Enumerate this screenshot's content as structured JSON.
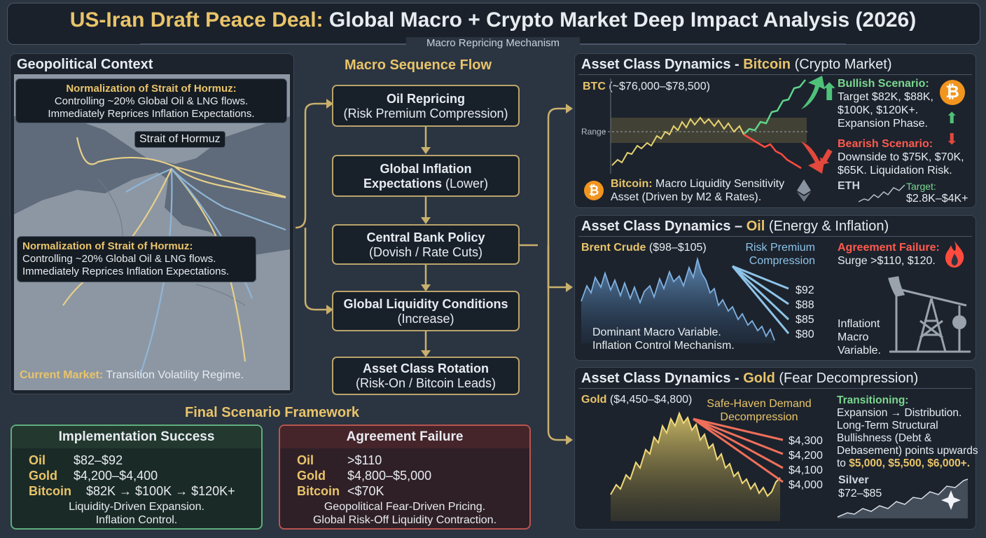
{
  "header": {
    "title_part1": "US-Iran Draft Peace Deal:",
    "title_part2": "Global Macro + Crypto Market Deep Impact Analysis (2026)",
    "subtitle": "Macro Repricing Mechanism"
  },
  "geo": {
    "title": "Geopolitical Context",
    "callout1_head": "Normalization of Strait of Hormuz:",
    "callout1_line1": "Controlling ~20% Global Oil & LNG flows.",
    "callout1_line2": "Immediately Reprices Inflation Expectations.",
    "map_label": "Strait of Hormuz",
    "callout2_head": "Normalization of Strait of Hormuz:",
    "callout2_line1": "Controlling ~20% Global Oil & LNG flows.",
    "callout2_line2": "Immediately Reprices Inflation Expectations.",
    "footer_head": "Current Market:",
    "footer_text": " Transition Volatility Regime."
  },
  "flow": {
    "title": "Macro Sequence Flow",
    "steps": [
      {
        "head": "Oil Repricing",
        "sub": "(Risk Premium Compression)"
      },
      {
        "head": "Global Inflation",
        "head2": "Expectations",
        "sub": " (Lower)"
      },
      {
        "head": "Central Bank Policy",
        "sub": "(Dovish / Rate Cuts)"
      },
      {
        "head": "Global Liquidity Conditions",
        "sub": "(Increase)"
      },
      {
        "head": "Asset Class Rotation",
        "sub": "(Risk-On / Bitcoin Leads)"
      }
    ]
  },
  "scenario": {
    "title": "Final Scenario Framework",
    "success": {
      "title": "Implementation Success",
      "rows": [
        {
          "label": "Oil",
          "value": "$82–$92"
        },
        {
          "label": "Gold",
          "value": "$4,200–$4,400"
        },
        {
          "label": "Bitcoin",
          "value": "$82K → $100K → $120K+"
        }
      ],
      "note1": "Liquidity-Driven Expansion.",
      "note2": "Inflation Control."
    },
    "failure": {
      "title": "Agreement Failure",
      "rows": [
        {
          "label": "Oil",
          "value": ">$110"
        },
        {
          "label": "Gold",
          "value": "$4,800–$5,000"
        },
        {
          "label": "Bitcoin",
          "value": "<$70K"
        }
      ],
      "note1": "Geopolitical Fear-Driven Pricing.",
      "note2": "Global Risk-Off Liquidity Contraction."
    }
  },
  "btc": {
    "title_a": "Asset Class Dynamics - ",
    "title_b": "Bitcoin",
    "title_c": " (Crypto Market)",
    "ticker": "BTC",
    "range_text": "(~$76,000–$78,500)",
    "range_label": "Range",
    "bull_head": "Bullish Scenario:",
    "bull_text1": "Target $82K, $88K,",
    "bull_text2": "$100K, $120K+.",
    "bull_text3": "Expansion Phase.",
    "bear_head": "Bearish Scenario:",
    "bear_text1": "Downside to $75K, $70K,",
    "bear_text2": "$65K. Liquidation Risk.",
    "note_head": "Bitcoin:",
    "note_text1": " Macro Liquidity Sensitivity",
    "note_text2": "Asset (Driven by M2 & Rates).",
    "eth_label": "ETH",
    "eth_target_head": "Target:",
    "eth_target": "$2.8K–$4K+",
    "btc_symbol": "₿"
  },
  "oil": {
    "title_a": "Asset Class Dynamics – ",
    "title_b": "Oil",
    "title_c": " (Energy & Inflation)",
    "brent_head": "Brent Crude",
    "brent_range": " ($98–$105)",
    "rpc1": "Risk Premium",
    "rpc2": "Compression",
    "targets": [
      "$92",
      "$88",
      "$85",
      "$80"
    ],
    "fail_head": "Agreement Failure:",
    "fail_text": "Surge >$110, $120.",
    "dom1": "Dominant Macro Variable.",
    "dom2": "Inflation Control Mechanism.",
    "infl1": "Inflationt",
    "infl2": "Macro",
    "infl3": "Variable."
  },
  "gold": {
    "title_a": "Asset Class Dynamics - ",
    "title_b": "Gold",
    "title_c": " (Fear Decompression)",
    "gold_head": "Gold",
    "gold_range": " ($4,450–$4,800)",
    "safe1": "Safe-Haven Demand",
    "safe2": "Decompression",
    "targets": [
      "$4,300",
      "$4,200",
      "$4,100",
      "$4,000"
    ],
    "trans_head": "Transitioning:",
    "trans1": "Expansion → Distribution.",
    "trans2": "Long-Term Structural",
    "trans3": "Bullishness (Debt &",
    "trans4": "Debasement) points upwards",
    "trans5_a": "to ",
    "trans5_b": "$5,000, $5,500, $6,000+.",
    "silver_head": "Silver",
    "silver_range": "$72–$85"
  },
  "colors": {
    "gold": "#e9c46a",
    "green": "#7bd88f",
    "red": "#ff5a4e",
    "blue": "#8ec3e8",
    "panel": "#1c232d",
    "bg": "#2b3441"
  }
}
